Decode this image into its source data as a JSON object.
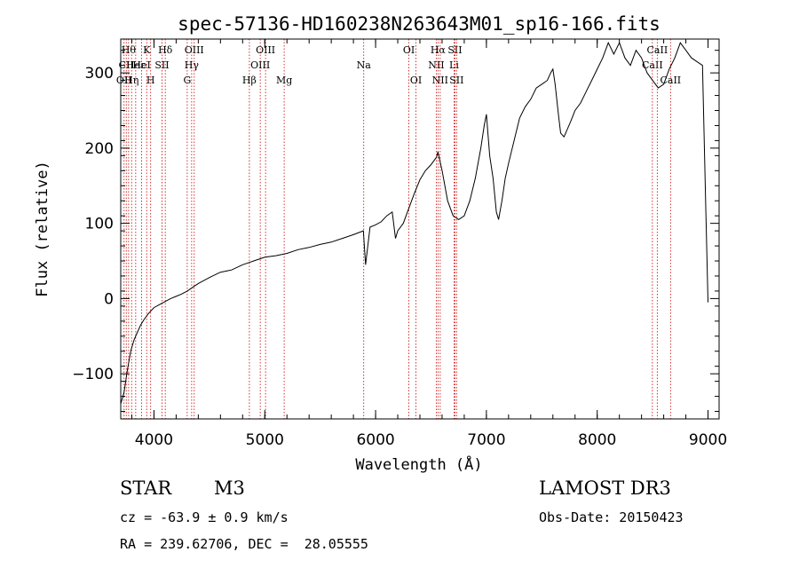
{
  "chart_data": {
    "type": "line",
    "title": "spec-57136-HD160238N263643M01_sp16-166.fits",
    "xlabel": "Wavelength (Å)",
    "ylabel": "Flux (relative)",
    "xlim": [
      3700,
      9100
    ],
    "ylim": [
      -160,
      345
    ],
    "x_ticks": [
      4000,
      5000,
      6000,
      7000,
      8000,
      9000
    ],
    "y_ticks": [
      -100,
      0,
      100,
      200,
      300
    ],
    "grid": false,
    "line_color": "#000000",
    "marker_color": "#cc0000",
    "series": [
      {
        "name": "flux",
        "x": [
          3700,
          3730,
          3760,
          3790,
          3820,
          3850,
          3880,
          3910,
          3950,
          4000,
          4050,
          4100,
          4150,
          4200,
          4250,
          4300,
          4350,
          4400,
          4500,
          4600,
          4700,
          4800,
          4861,
          4900,
          5000,
          5100,
          5200,
          5300,
          5400,
          5500,
          5600,
          5700,
          5800,
          5890,
          5910,
          5950,
          6000,
          6050,
          6100,
          6150,
          6180,
          6200,
          6250,
          6300,
          6350,
          6400,
          6450,
          6500,
          6550,
          6563,
          6600,
          6650,
          6700,
          6750,
          6800,
          6850,
          6900,
          6950,
          6980,
          7000,
          7030,
          7060,
          7090,
          7110,
          7140,
          7170,
          7200,
          7250,
          7300,
          7350,
          7400,
          7450,
          7500,
          7550,
          7580,
          7600,
          7620,
          7650,
          7670,
          7700,
          7730,
          7760,
          7800,
          7850,
          7900,
          7950,
          8000,
          8050,
          8100,
          8150,
          8200,
          8250,
          8300,
          8350,
          8400,
          8450,
          8500,
          8550,
          8600,
          8650,
          8700,
          8750,
          8800,
          8850,
          8900,
          8950,
          8980,
          9000
        ],
        "y": [
          -140,
          -125,
          -95,
          -70,
          -55,
          -45,
          -35,
          -28,
          -20,
          -12,
          -8,
          -4,
          0,
          3,
          6,
          10,
          15,
          20,
          28,
          35,
          38,
          45,
          48,
          50,
          55,
          57,
          60,
          65,
          68,
          72,
          75,
          80,
          85,
          90,
          45,
          95,
          98,
          102,
          110,
          115,
          80,
          90,
          100,
          120,
          140,
          158,
          170,
          178,
          188,
          195,
          170,
          130,
          110,
          105,
          110,
          130,
          160,
          200,
          230,
          245,
          190,
          160,
          115,
          105,
          130,
          160,
          180,
          210,
          240,
          255,
          265,
          280,
          285,
          290,
          300,
          305,
          285,
          245,
          220,
          215,
          225,
          235,
          250,
          260,
          275,
          290,
          305,
          320,
          340,
          325,
          340,
          320,
          310,
          330,
          320,
          300,
          290,
          280,
          285,
          305,
          320,
          340,
          330,
          320,
          315,
          310,
          120,
          -5
        ]
      }
    ],
    "markers": [
      {
        "x": 3730,
        "label": "OII",
        "row": 2
      },
      {
        "x": 3750,
        "label": "CII",
        "row": 1
      },
      {
        "x": 3771,
        "label": "Hθ",
        "row": 0
      },
      {
        "x": 3798,
        "label": "Hη",
        "row": 2
      },
      {
        "x": 3835,
        "label": "Heε",
        "row": 1
      },
      {
        "x": 3889,
        "label": "HeI",
        "row": 1
      },
      {
        "x": 3934,
        "label": "K",
        "row": 0
      },
      {
        "x": 3970,
        "label": "H",
        "row": 2
      },
      {
        "x": 4072,
        "label": "SII",
        "row": 1
      },
      {
        "x": 4102,
        "label": "Hδ",
        "row": 0
      },
      {
        "x": 4300,
        "label": "G",
        "row": 2
      },
      {
        "x": 4340,
        "label": "Hγ",
        "row": 1
      },
      {
        "x": 4363,
        "label": "OIII",
        "row": 0
      },
      {
        "x": 4861,
        "label": "Hβ",
        "row": 2
      },
      {
        "x": 4959,
        "label": "OIII",
        "row": 1
      },
      {
        "x": 5007,
        "label": "OIII",
        "row": 0
      },
      {
        "x": 5175,
        "label": "Mg",
        "row": 2
      },
      {
        "x": 5893,
        "label": "Na",
        "row": 1
      },
      {
        "x": 6300,
        "label": "OI",
        "row": 0
      },
      {
        "x": 6364,
        "label": "OI",
        "row": 2
      },
      {
        "x": 6548,
        "label": "NII",
        "row": 1
      },
      {
        "x": 6563,
        "label": "Hα",
        "row": 0
      },
      {
        "x": 6583,
        "label": "NII",
        "row": 2
      },
      {
        "x": 6708,
        "label": "Li",
        "row": 1
      },
      {
        "x": 6716,
        "label": "SII",
        "row": 0
      },
      {
        "x": 6731,
        "label": "SII",
        "row": 2
      },
      {
        "x": 8498,
        "label": "CaII",
        "row": 1
      },
      {
        "x": 8542,
        "label": "CaII",
        "row": 0
      },
      {
        "x": 8662,
        "label": "CaII",
        "row": 2
      }
    ]
  },
  "info": {
    "class": "STAR",
    "subclass": "M3",
    "survey": "LAMOST DR3",
    "cz": "cz = -63.9 ± 0.9 km/s",
    "obs_date": "Obs-Date: 20150423",
    "coords": "RA = 239.62706, DEC =  28.05555"
  }
}
